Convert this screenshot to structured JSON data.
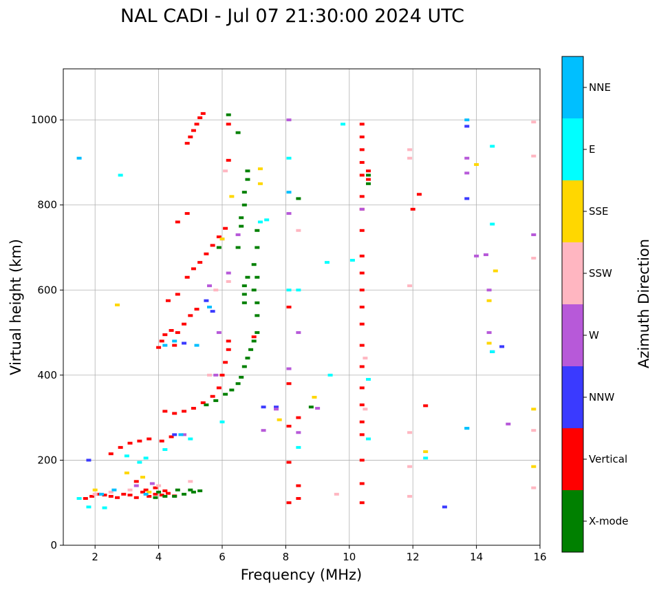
{
  "chart_data": {
    "type": "scatter",
    "title": "NAL CADI - Jul 07 21:30:00 2024 UTC",
    "xlabel": "Frequency (MHz)",
    "ylabel": "Virtual height (km)",
    "xlim": [
      1,
      16
    ],
    "ylim": [
      0,
      1120
    ],
    "xticks": [
      2,
      4,
      6,
      8,
      10,
      12,
      14,
      16
    ],
    "yticks": [
      0,
      200,
      400,
      600,
      800,
      1000
    ],
    "grid": true,
    "colorbar": {
      "label": "Azimuth Direction",
      "entries": [
        {
          "name": "X-mode",
          "color": "#008000"
        },
        {
          "name": "Vertical",
          "color": "#ff0000"
        },
        {
          "name": "NNW",
          "color": "#3a3aff"
        },
        {
          "name": "W",
          "color": "#b759d9"
        },
        {
          "name": "SSW",
          "color": "#ffb6c1"
        },
        {
          "name": "SSE",
          "color": "#ffd700"
        },
        {
          "name": "E",
          "color": "#00ffff"
        },
        {
          "name": "NNE",
          "color": "#00bfff"
        }
      ]
    },
    "series": [
      {
        "name": "Vertical",
        "points": [
          [
            1.7,
            110
          ],
          [
            1.9,
            115
          ],
          [
            2.1,
            120
          ],
          [
            2.3,
            118
          ],
          [
            2.5,
            115
          ],
          [
            2.7,
            112
          ],
          [
            2.9,
            120
          ],
          [
            3.1,
            118
          ],
          [
            3.3,
            112
          ],
          [
            3.5,
            125
          ],
          [
            3.7,
            115
          ],
          [
            3.9,
            120
          ],
          [
            4.1,
            118
          ],
          [
            4.3,
            122
          ],
          [
            4.5,
            116
          ],
          [
            3.3,
            150
          ],
          [
            3.6,
            130
          ],
          [
            3.9,
            135
          ],
          [
            4.2,
            128
          ],
          [
            2.5,
            215
          ],
          [
            2.8,
            230
          ],
          [
            3.1,
            240
          ],
          [
            3.4,
            245
          ],
          [
            3.7,
            250
          ],
          [
            4.1,
            245
          ],
          [
            4.4,
            255
          ],
          [
            4.2,
            315
          ],
          [
            4.5,
            310
          ],
          [
            4.8,
            315
          ],
          [
            5.1,
            322
          ],
          [
            5.4,
            335
          ],
          [
            5.7,
            350
          ],
          [
            5.9,
            370
          ],
          [
            6.0,
            400
          ],
          [
            6.1,
            430
          ],
          [
            6.2,
            460
          ],
          [
            6.2,
            480
          ],
          [
            4.0,
            465
          ],
          [
            4.1,
            480
          ],
          [
            4.2,
            495
          ],
          [
            4.4,
            505
          ],
          [
            4.5,
            470
          ],
          [
            4.6,
            500
          ],
          [
            4.8,
            520
          ],
          [
            5.0,
            540
          ],
          [
            5.2,
            555
          ],
          [
            4.3,
            575
          ],
          [
            4.6,
            590
          ],
          [
            4.9,
            630
          ],
          [
            5.1,
            650
          ],
          [
            5.3,
            665
          ],
          [
            5.5,
            685
          ],
          [
            5.7,
            705
          ],
          [
            5.9,
            725
          ],
          [
            6.1,
            745
          ],
          [
            4.6,
            760
          ],
          [
            4.9,
            780
          ],
          [
            4.9,
            945
          ],
          [
            5.0,
            960
          ],
          [
            5.1,
            975
          ],
          [
            5.2,
            990
          ],
          [
            5.3,
            1005
          ],
          [
            5.4,
            1015
          ],
          [
            6.2,
            990
          ],
          [
            6.2,
            905
          ],
          [
            7.0,
            490
          ],
          [
            8.1,
            100
          ],
          [
            8.1,
            195
          ],
          [
            8.1,
            280
          ],
          [
            8.1,
            380
          ],
          [
            8.1,
            560
          ],
          [
            8.4,
            110
          ],
          [
            8.4,
            140
          ],
          [
            8.4,
            300
          ],
          [
            10.4,
            100
          ],
          [
            10.4,
            145
          ],
          [
            10.4,
            200
          ],
          [
            10.4,
            260
          ],
          [
            10.4,
            290
          ],
          [
            10.4,
            330
          ],
          [
            10.4,
            370
          ],
          [
            10.4,
            420
          ],
          [
            10.4,
            470
          ],
          [
            10.4,
            520
          ],
          [
            10.4,
            560
          ],
          [
            10.4,
            600
          ],
          [
            10.4,
            640
          ],
          [
            10.4,
            680
          ],
          [
            10.4,
            740
          ],
          [
            10.4,
            790
          ],
          [
            10.4,
            820
          ],
          [
            10.4,
            870
          ],
          [
            10.4,
            900
          ],
          [
            10.4,
            930
          ],
          [
            10.4,
            960
          ],
          [
            10.4,
            990
          ],
          [
            10.6,
            860
          ],
          [
            10.6,
            880
          ],
          [
            12.0,
            790
          ],
          [
            12.2,
            825
          ],
          [
            12.4,
            328
          ]
        ]
      },
      {
        "name": "X-mode",
        "points": [
          [
            3.9,
            112
          ],
          [
            4.2,
            115
          ],
          [
            4.5,
            115
          ],
          [
            4.8,
            120
          ],
          [
            5.1,
            125
          ],
          [
            5.3,
            128
          ],
          [
            4.0,
            125
          ],
          [
            4.6,
            130
          ],
          [
            5.0,
            130
          ],
          [
            5.5,
            330
          ],
          [
            5.8,
            340
          ],
          [
            6.1,
            355
          ],
          [
            6.3,
            365
          ],
          [
            6.5,
            380
          ],
          [
            6.6,
            395
          ],
          [
            6.7,
            420
          ],
          [
            6.8,
            440
          ],
          [
            6.9,
            460
          ],
          [
            7.0,
            480
          ],
          [
            7.1,
            500
          ],
          [
            7.1,
            540
          ],
          [
            7.1,
            570
          ],
          [
            7.0,
            600
          ],
          [
            7.1,
            630
          ],
          [
            7.0,
            660
          ],
          [
            7.1,
            700
          ],
          [
            7.1,
            740
          ],
          [
            6.5,
            700
          ],
          [
            6.6,
            750
          ],
          [
            6.6,
            770
          ],
          [
            6.7,
            800
          ],
          [
            6.7,
            830
          ],
          [
            6.8,
            860
          ],
          [
            6.8,
            880
          ],
          [
            6.7,
            570
          ],
          [
            6.7,
            590
          ],
          [
            6.7,
            610
          ],
          [
            6.8,
            630
          ],
          [
            6.2,
            1012
          ],
          [
            6.5,
            970
          ],
          [
            5.9,
            700
          ],
          [
            8.4,
            815
          ],
          [
            8.8,
            325
          ],
          [
            10.6,
            850
          ],
          [
            10.6,
            870
          ]
        ]
      },
      {
        "name": "NNW",
        "points": [
          [
            4.5,
            260
          ],
          [
            5.5,
            575
          ],
          [
            5.7,
            550
          ],
          [
            4.8,
            475
          ],
          [
            7.3,
            325
          ],
          [
            7.7,
            325
          ],
          [
            13.0,
            90
          ],
          [
            13.7,
            985
          ],
          [
            13.7,
            815
          ],
          [
            14.5,
            455
          ],
          [
            14.8,
            467
          ],
          [
            1.8,
            200
          ]
        ]
      },
      {
        "name": "W",
        "points": [
          [
            3.3,
            140
          ],
          [
            3.8,
            145
          ],
          [
            4.8,
            260
          ],
          [
            5.8,
            400
          ],
          [
            5.9,
            500
          ],
          [
            5.6,
            610
          ],
          [
            6.2,
            640
          ],
          [
            6.0,
            720
          ],
          [
            7.7,
            320
          ],
          [
            8.1,
            415
          ],
          [
            8.1,
            780
          ],
          [
            8.4,
            500
          ],
          [
            8.1,
            1000
          ],
          [
            9.0,
            322
          ],
          [
            8.4,
            265
          ],
          [
            10.4,
            790
          ],
          [
            13.7,
            875
          ],
          [
            13.7,
            910
          ],
          [
            14.0,
            680
          ],
          [
            14.4,
            600
          ],
          [
            14.4,
            500
          ],
          [
            14.3,
            683
          ],
          [
            15.0,
            285
          ],
          [
            15.8,
            730
          ],
          [
            6.5,
            730
          ],
          [
            7.3,
            270
          ]
        ]
      },
      {
        "name": "SSW",
        "points": [
          [
            2.0,
            120
          ],
          [
            2.5,
            125
          ],
          [
            3.1,
            130
          ],
          [
            4.0,
            140
          ],
          [
            5.0,
            150
          ],
          [
            5.6,
            400
          ],
          [
            5.8,
            600
          ],
          [
            6.2,
            620
          ],
          [
            6.1,
            880
          ],
          [
            8.4,
            740
          ],
          [
            9.6,
            120
          ],
          [
            10.5,
            320
          ],
          [
            10.5,
            440
          ],
          [
            11.9,
            930
          ],
          [
            11.9,
            910
          ],
          [
            11.9,
            610
          ],
          [
            11.9,
            265
          ],
          [
            11.9,
            185
          ],
          [
            11.9,
            115
          ],
          [
            15.8,
            995
          ],
          [
            15.8,
            915
          ],
          [
            15.8,
            675
          ],
          [
            15.8,
            270
          ],
          [
            15.8,
            135
          ]
        ]
      },
      {
        "name": "SSE",
        "points": [
          [
            2.0,
            130
          ],
          [
            2.7,
            565
          ],
          [
            3.0,
            170
          ],
          [
            3.5,
            160
          ],
          [
            3.7,
            125
          ],
          [
            6.3,
            820
          ],
          [
            7.2,
            850
          ],
          [
            7.2,
            885
          ],
          [
            6.0,
            720
          ],
          [
            8.9,
            348
          ],
          [
            7.8,
            295
          ],
          [
            14.4,
            475
          ],
          [
            14.4,
            575
          ],
          [
            14.6,
            645
          ],
          [
            12.4,
            220
          ],
          [
            15.8,
            320
          ],
          [
            15.8,
            185
          ],
          [
            14.0,
            895
          ]
        ]
      },
      {
        "name": "E",
        "points": [
          [
            1.5,
            110
          ],
          [
            1.8,
            90
          ],
          [
            2.3,
            88
          ],
          [
            2.8,
            870
          ],
          [
            3.0,
            210
          ],
          [
            3.4,
            195
          ],
          [
            3.6,
            205
          ],
          [
            4.2,
            225
          ],
          [
            5.0,
            250
          ],
          [
            6.0,
            290
          ],
          [
            7.4,
            765
          ],
          [
            8.1,
            600
          ],
          [
            8.1,
            910
          ],
          [
            8.4,
            230
          ],
          [
            8.4,
            600
          ],
          [
            9.3,
            665
          ],
          [
            9.4,
            400
          ],
          [
            9.8,
            990
          ],
          [
            10.1,
            670
          ],
          [
            10.6,
            390
          ],
          [
            10.6,
            250
          ],
          [
            12.4,
            205
          ],
          [
            14.5,
            938
          ],
          [
            14.5,
            755
          ],
          [
            14.5,
            455
          ],
          [
            13.7,
            275
          ],
          [
            7.2,
            760
          ]
        ]
      },
      {
        "name": "NNE",
        "points": [
          [
            1.5,
            910
          ],
          [
            2.2,
            120
          ],
          [
            2.6,
            130
          ],
          [
            3.6,
            120
          ],
          [
            4.2,
            470
          ],
          [
            4.5,
            480
          ],
          [
            4.7,
            260
          ],
          [
            5.2,
            470
          ],
          [
            5.6,
            560
          ],
          [
            13.7,
            1000
          ],
          [
            13.7,
            275
          ],
          [
            8.1,
            830
          ]
        ]
      }
    ]
  }
}
